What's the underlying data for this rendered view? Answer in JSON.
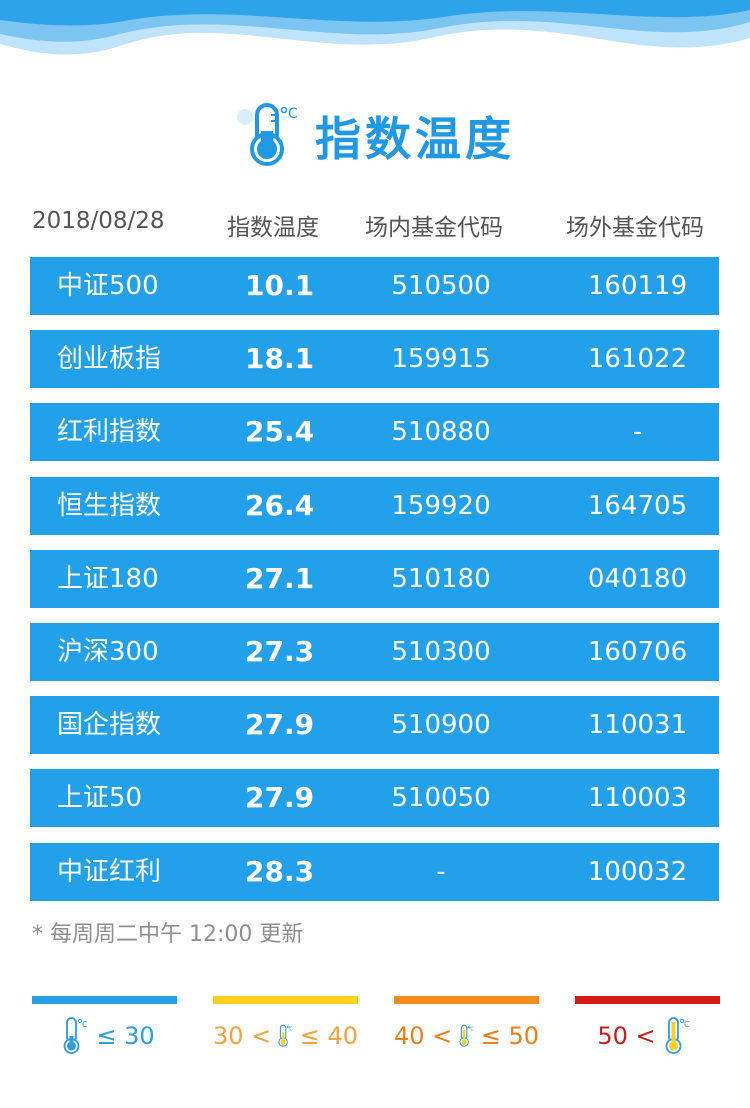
{
  "title": "指数温度",
  "header": {
    "date": "2018/08/28",
    "temp": "指数温度",
    "in_code": "场内基金代码",
    "out_code": "场外基金代码"
  },
  "rows": [
    {
      "name": "中证500",
      "temp": "10.1",
      "in_code": "510500",
      "out_code": "160119"
    },
    {
      "name": "创业板指",
      "temp": "18.1",
      "in_code": "159915",
      "out_code": "161022"
    },
    {
      "name": "红利指数",
      "temp": "25.4",
      "in_code": "510880",
      "out_code": "-"
    },
    {
      "name": "恒生指数",
      "temp": "26.4",
      "in_code": "159920",
      "out_code": "164705"
    },
    {
      "name": "上证180",
      "temp": "27.1",
      "in_code": "510180",
      "out_code": "040180"
    },
    {
      "name": "沪深300",
      "temp": "27.3",
      "in_code": "510300",
      "out_code": "160706"
    },
    {
      "name": "国企指数",
      "temp": "27.9",
      "in_code": "510900",
      "out_code": "110031"
    },
    {
      "name": "上证50",
      "temp": "27.9",
      "in_code": "510050",
      "out_code": "110003"
    },
    {
      "name": "中证红利",
      "temp": "28.3",
      "in_code": "-",
      "out_code": "100032"
    }
  ],
  "note": "* 每周周二中午 12:00 更新",
  "legend": [
    {
      "pre": "",
      "post": "≤ 30",
      "color": "#2b9ee6"
    },
    {
      "pre": "30 <",
      "post": "≤ 40",
      "color": "#f5a43a"
    },
    {
      "pre": "40 <",
      "post": "≤ 50",
      "color": "#f07d1a"
    },
    {
      "pre": "50 <",
      "post": "",
      "color": "#c8201a"
    }
  ],
  "colors": {
    "row_bg": "#22a1ea",
    "title": "#1f98e6",
    "legend_bars": [
      "#2b9ee6",
      "#fcd21c",
      "#f58d1e",
      "#d51f16"
    ]
  },
  "icons": {
    "title": "thermometer-icon",
    "legend": "thermometer-icon"
  }
}
